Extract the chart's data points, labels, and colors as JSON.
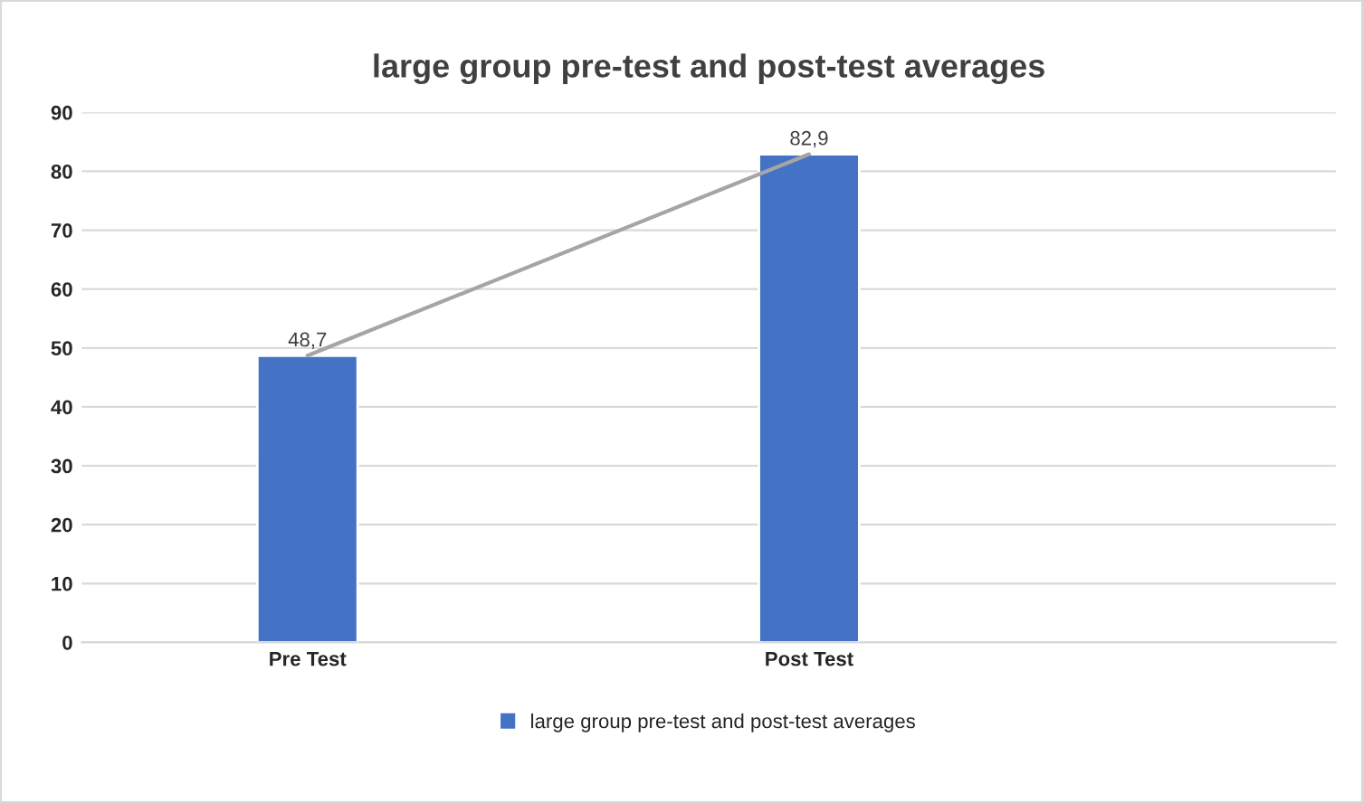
{
  "chart_data": {
    "type": "bar",
    "title": "large group pre-test and post-test averages",
    "categories": [
      "Pre Test",
      "Post Test"
    ],
    "series": [
      {
        "name": "large group pre-test and post-test averages",
        "color": "#4472c4",
        "values": [
          48.7,
          82.9
        ],
        "value_labels": [
          "48,7",
          "82,9"
        ]
      },
      {
        "type": "line",
        "color": "#a5a5a5",
        "values": [
          48.7,
          82.9
        ],
        "marker": "none",
        "line_style": "solid"
      }
    ],
    "ylim": [
      0,
      90
    ],
    "yticks": [
      0,
      10,
      20,
      30,
      40,
      50,
      60,
      70,
      80,
      90
    ],
    "grid": "y",
    "legend": "bottom"
  }
}
